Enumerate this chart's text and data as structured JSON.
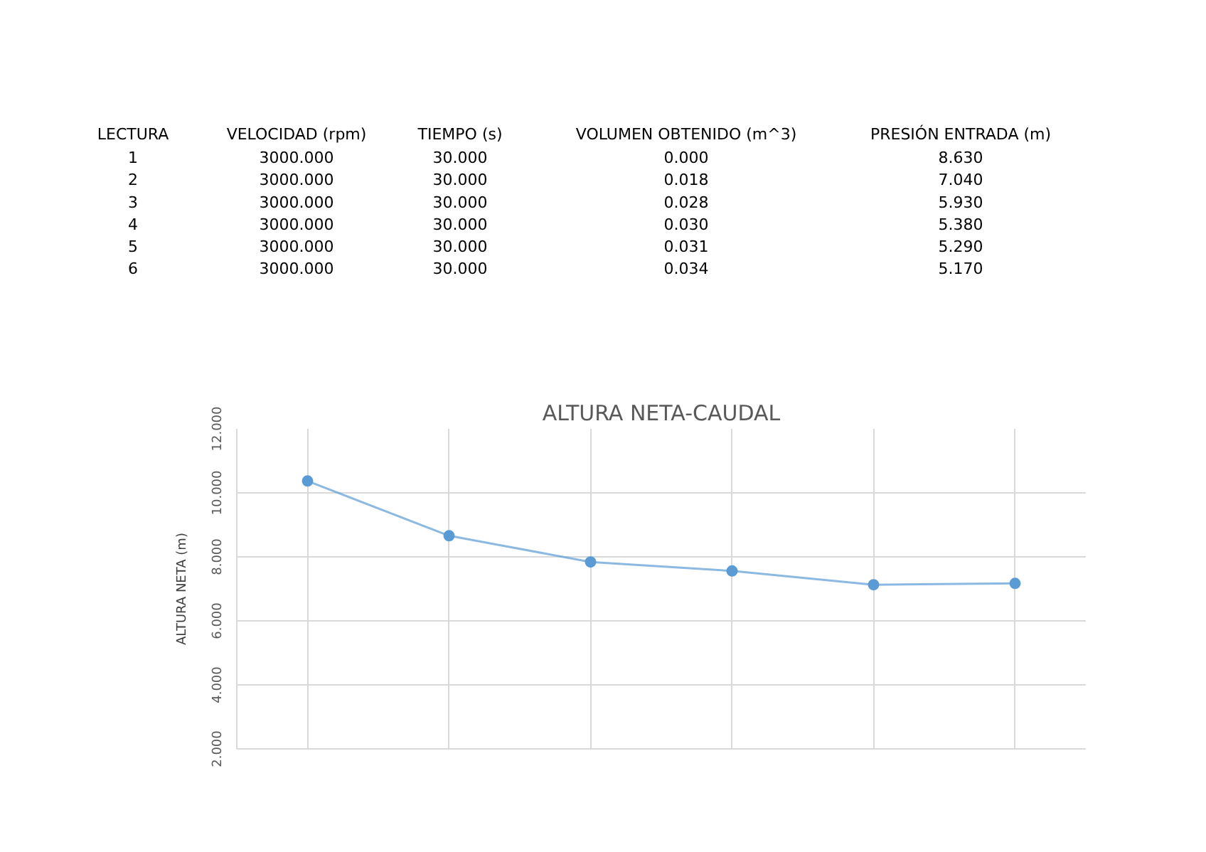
{
  "chart_data": {
    "type": "line",
    "title": "ALTURA NETA-CAUDAL",
    "ylabel": "ALTURA NETA (m)",
    "annotations": [
      "LECTURA",
      "VELOCIDAD (rpm)",
      "TIEMPO (s)",
      "VOLUMEN OBTENIDO (m^3)",
      "PRESIÓN ENTRADA (m)",
      "1",
      "3000.000",
      "30.000",
      "0.000",
      "8.630",
      "2",
      "3000.000",
      "30.000",
      "0.018",
      "7.040",
      "3",
      "3000.000",
      "30.000",
      "0.028",
      "5.930",
      "4",
      "3000.000",
      "30.000",
      "0.030",
      "5.380",
      "5",
      "3000.000",
      "30.000",
      "0.031",
      "5.290",
      "6",
      "3000.000",
      "30.000",
      "0.034",
      "5.170"
    ],
    "categories": [
      null,
      null,
      null,
      null,
      null,
      null
    ],
    "series": [
      {
        "color": "#5b9bd5",
        "values": [
          10.37,
          8.66,
          7.84,
          7.56,
          7.13,
          7.17
        ]
      }
    ],
    "ylim": [
      2,
      12
    ],
    "yticks": [
      {
        "value": 2,
        "label": "2.000"
      },
      {
        "value": 4,
        "label": "4.000"
      },
      {
        "value": 6,
        "label": "6.000"
      },
      {
        "value": 8,
        "label": "8.000"
      },
      {
        "value": 10,
        "label": "10.000"
      },
      {
        "value": 12,
        "label": "12.000"
      }
    ],
    "tick_labels": "y",
    "grid": true,
    "marker": "circle",
    "line_style": "solid"
  }
}
